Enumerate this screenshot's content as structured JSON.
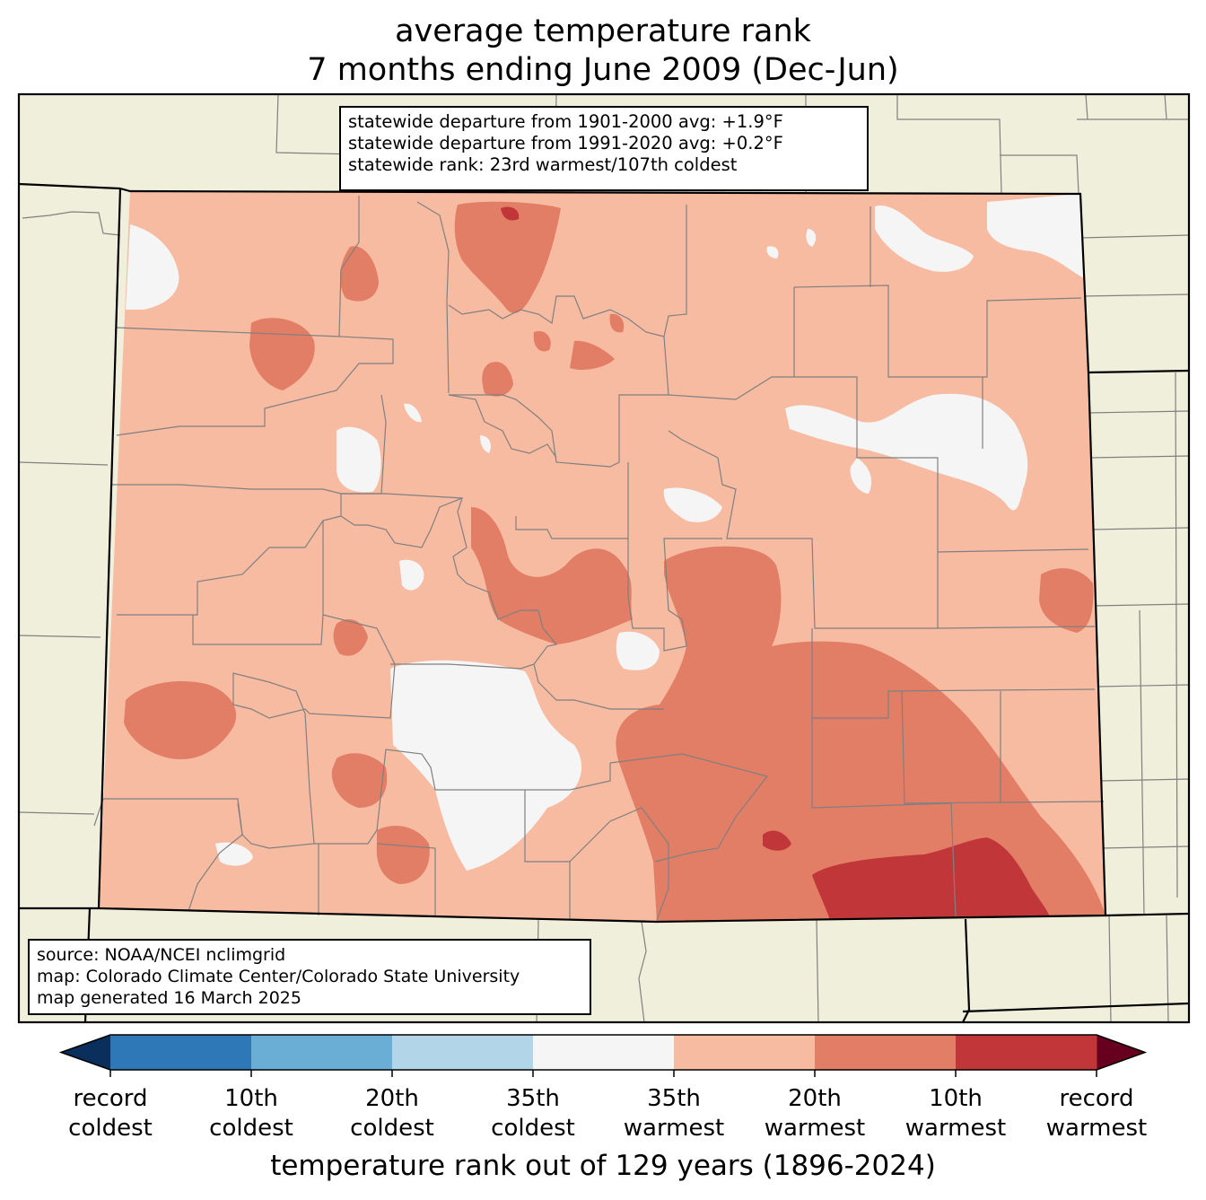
{
  "title": {
    "line1": "average temperature rank",
    "line2": "7 months ending June 2009 (Dec-Jun)"
  },
  "stats": {
    "line1": "statewide departure from 1901-2000 avg: +1.9°F",
    "line2": "statewide departure from 1991-2020 avg: +0.2°F",
    "line3": "statewide rank: 23rd warmest/107th coldest"
  },
  "source": {
    "line1": "source: NOAA/NCEI nclimgrid",
    "line2": "map: Colorado Climate Center/Colorado State University",
    "line3": "map generated 16 March 2025"
  },
  "colorbar": {
    "title": "temperature rank out of 129 years (1896-2024)",
    "under_color": "#0b2f5c",
    "over_color": "#67001f",
    "colors": [
      "#2e78b7",
      "#6aaed6",
      "#b3d5e8",
      "#f5f5f5",
      "#f7bba1",
      "#e27d66",
      "#c13639"
    ],
    "ticks": [
      {
        "l1": "record",
        "l2": "coldest"
      },
      {
        "l1": "10th",
        "l2": "coldest"
      },
      {
        "l1": "20th",
        "l2": "coldest"
      },
      {
        "l1": "35th",
        "l2": "coldest"
      },
      {
        "l1": "35th",
        "l2": "warmest"
      },
      {
        "l1": "20th",
        "l2": "warmest"
      },
      {
        "l1": "10th",
        "l2": "warmest"
      },
      {
        "l1": "record",
        "l2": "warmest"
      }
    ]
  },
  "map_colors": {
    "land_outside": "#f0efdc",
    "near_normal": "#f5f5f5",
    "warmest_35th": "#f7bba1",
    "warmest_20th": "#e27d66",
    "warmest_10th": "#c13639",
    "boundary": "#808080",
    "state_border": "#000000"
  }
}
